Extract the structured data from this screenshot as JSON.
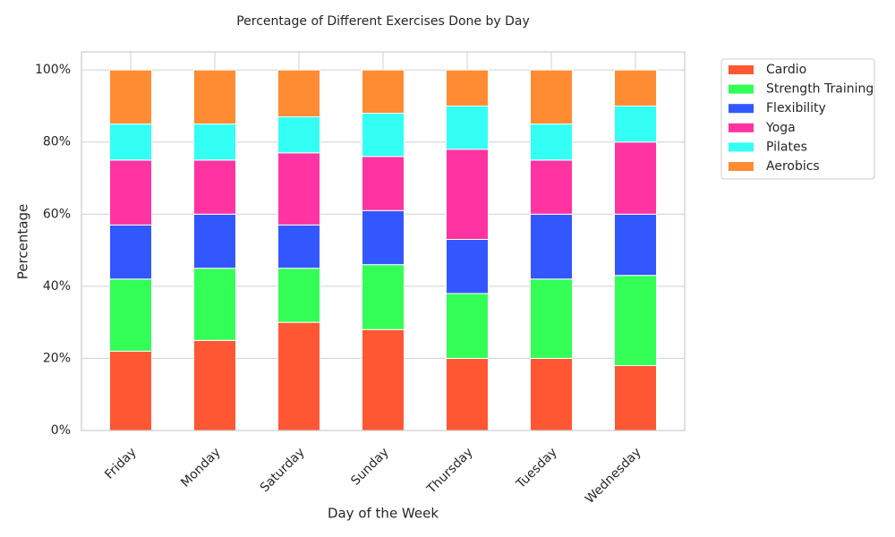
{
  "chart_data": {
    "type": "stacked_bar",
    "title": "Percentage of Different Exercises Done by Day",
    "x_label": "Day of the Week",
    "y_label": "Percentage",
    "categories": [
      "Friday",
      "Monday",
      "Saturday",
      "Sunday",
      "Thursday",
      "Tuesday",
      "Wednesday"
    ],
    "series": [
      {
        "name": "Cardio",
        "color": "#ff5733",
        "values": [
          22,
          25,
          30,
          28,
          20,
          20,
          18
        ]
      },
      {
        "name": "Strength Training",
        "color": "#33ff57",
        "values": [
          20,
          20,
          15,
          18,
          18,
          22,
          25
        ]
      },
      {
        "name": "Flexibility",
        "color": "#3357ff",
        "values": [
          15,
          15,
          12,
          15,
          15,
          18,
          17
        ]
      },
      {
        "name": "Yoga",
        "color": "#ff33a1",
        "values": [
          18,
          15,
          20,
          15,
          25,
          15,
          20
        ]
      },
      {
        "name": "Pilates",
        "color": "#33fff5",
        "values": [
          10,
          10,
          10,
          12,
          12,
          10,
          10
        ]
      },
      {
        "name": "Aerobics",
        "color": "#ff8c33",
        "values": [
          15,
          15,
          13,
          12,
          10,
          15,
          10
        ]
      }
    ],
    "ylim": [
      0,
      105
    ],
    "yticks": [
      {
        "value": 0,
        "label": "0%"
      },
      {
        "value": 20,
        "label": "20%"
      },
      {
        "value": 40,
        "label": "40%"
      },
      {
        "value": 60,
        "label": "60%"
      },
      {
        "value": 80,
        "label": "80%"
      },
      {
        "value": 100,
        "label": "100%"
      }
    ],
    "grid": true,
    "legend": "outside-upper-right"
  }
}
